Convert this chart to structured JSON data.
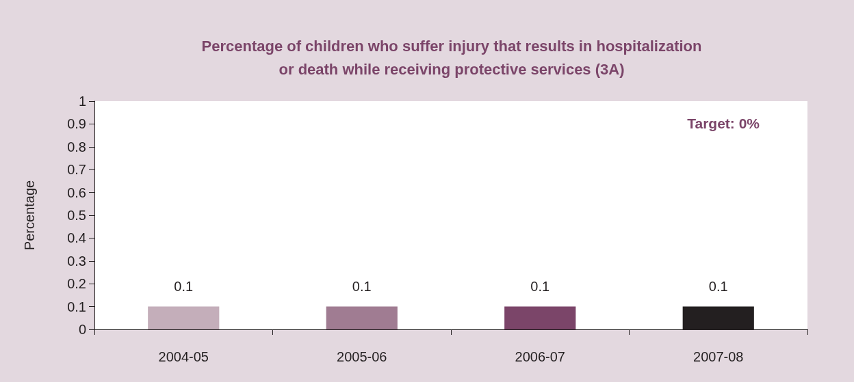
{
  "chart_data": {
    "type": "bar",
    "title": "Percentage of children who suffer injury that results in hospitalization\nor death while receiving protective services (3A)",
    "ylabel": "Percentage",
    "annotations": [
      "Target: 0%"
    ],
    "categories": [
      "2004-05",
      "2005-06",
      "2006-07",
      "2007-08"
    ],
    "values": [
      0.1,
      0.1,
      0.1,
      0.1
    ],
    "colors": [
      "#c4aeba",
      "#a07c92",
      "#7b4569",
      "#231f20"
    ],
    "ylim": [
      0,
      1
    ],
    "yticks": [
      0,
      0.1,
      0.2,
      0.3,
      0.4,
      0.5,
      0.6,
      0.7,
      0.8,
      0.9,
      1
    ],
    "grid": false,
    "data_labels": true
  }
}
